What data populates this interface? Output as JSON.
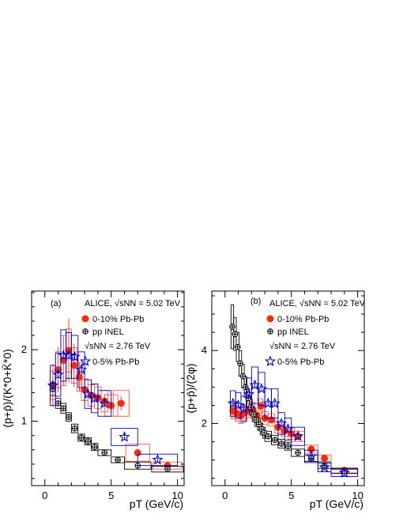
{
  "chart_data": [
    {
      "type": "scatter",
      "panel_label": "(a)",
      "annotation": "ALICE, √sNN = 5.02 TeV",
      "annotation_2": "√sNN = 2.76 TeV",
      "xlabel": "pT (GeV/c)",
      "ylabel": "(p+p̄)/(K*0+K̄*0)",
      "xlim": [
        -1.0,
        10.5
      ],
      "ylim": [
        0.1,
        2.82
      ],
      "xticks": [
        0,
        5,
        10
      ],
      "yticks": [
        1,
        2
      ],
      "legend_position": "top-right",
      "series": [
        {
          "name": "0-10% Pb-Pb",
          "marker": "filled-circle",
          "color": "#ff2a00",
          "box_color": "#ff5a3a",
          "x": [
            0.6,
            1.0,
            1.4,
            1.8,
            2.2,
            2.6,
            3.0,
            3.5,
            4.0,
            4.5,
            5.0,
            5.75,
            7.0,
            9.25
          ],
          "y": [
            1.5,
            1.72,
            1.85,
            1.99,
            1.78,
            1.62,
            1.44,
            1.36,
            1.33,
            1.28,
            1.22,
            1.25,
            0.56,
            0.38
          ],
          "stat_err": [
            0.3,
            0.32,
            0.35,
            0.45,
            0.3,
            0.2,
            0.15,
            0.1,
            0.1,
            0.1,
            0.1,
            0.1,
            0.05,
            0.04
          ],
          "box_half_width": [
            0.2,
            0.2,
            0.2,
            0.2,
            0.2,
            0.2,
            0.25,
            0.25,
            0.25,
            0.25,
            0.5,
            0.6,
            0.9,
            1.1
          ],
          "box_half_height": [
            0.2,
            0.25,
            0.35,
            0.3,
            0.25,
            0.2,
            0.15,
            0.15,
            0.15,
            0.15,
            0.15,
            0.18,
            0.12,
            0.05
          ]
        },
        {
          "name": "pp INEL",
          "marker": "open-cross",
          "color": "#000000",
          "box_color": "#000000",
          "x": [
            0.6,
            1.0,
            1.4,
            1.8,
            2.25,
            2.75,
            3.25,
            3.75,
            4.5,
            5.5,
            7.0,
            9.25
          ],
          "y": [
            1.45,
            1.25,
            1.18,
            1.06,
            0.9,
            0.77,
            0.72,
            0.64,
            0.56,
            0.46,
            0.38,
            0.33
          ],
          "stat_err": [
            0.03,
            0.03,
            0.03,
            0.03,
            0.02,
            0.02,
            0.02,
            0.02,
            0.02,
            0.02,
            0.02,
            0.02
          ],
          "box_half_width": [
            0.2,
            0.2,
            0.2,
            0.2,
            0.25,
            0.25,
            0.25,
            0.25,
            0.5,
            0.5,
            1.0,
            1.2
          ],
          "box_half_height": [
            0.09,
            0.07,
            0.07,
            0.06,
            0.06,
            0.05,
            0.05,
            0.05,
            0.04,
            0.04,
            0.05,
            0.04
          ]
        },
        {
          "name": "0-5% Pb-Pb",
          "marker": "open-star",
          "color": "#0000cc",
          "box_color": "#0000cc",
          "x": [
            0.6,
            1.0,
            1.4,
            1.8,
            2.25,
            2.75,
            3.25,
            3.75,
            4.5,
            6.0,
            8.5
          ],
          "y": [
            1.5,
            1.65,
            1.92,
            1.92,
            1.9,
            1.72,
            1.38,
            1.32,
            1.25,
            0.78,
            0.46
          ],
          "stat_err": [
            0.05,
            0.05,
            0.05,
            0.05,
            0.05,
            0.04,
            0.04,
            0.04,
            0.04,
            0.04,
            0.03
          ],
          "box_half_width": [
            0.2,
            0.2,
            0.2,
            0.2,
            0.25,
            0.25,
            0.25,
            0.25,
            0.5,
            1.0,
            1.5
          ],
          "box_half_height": [
            0.28,
            0.3,
            0.36,
            0.32,
            0.3,
            0.25,
            0.2,
            0.2,
            0.18,
            0.12,
            0.08
          ]
        }
      ]
    },
    {
      "type": "scatter",
      "panel_label": "(b)",
      "annotation": "ALICE, √sNN = 5.02 TeV",
      "annotation_2": "√sNN = 2.76 TeV",
      "xlabel": "pT (GeV/c)",
      "ylabel": "(p+p̄)/(2φ)",
      "xlim": [
        -1.0,
        10.5
      ],
      "ylim": [
        0.3,
        5.63
      ],
      "xticks": [
        0,
        5,
        10
      ],
      "yticks": [
        2,
        4
      ],
      "legend_position": "top-right",
      "series": [
        {
          "name": "0-10% Pb-Pb",
          "marker": "filled-circle",
          "color": "#ff2a00",
          "box_color": "#ff5a3a",
          "x": [
            0.6,
            0.9,
            1.2,
            1.5,
            1.8,
            2.1,
            2.4,
            2.7,
            3.0,
            3.5,
            4.0,
            4.5,
            5.0,
            5.5,
            6.5,
            7.5,
            9.0
          ],
          "y": [
            2.35,
            2.28,
            2.22,
            2.3,
            2.38,
            2.36,
            2.22,
            2.48,
            2.15,
            2.1,
            1.9,
            1.8,
            1.72,
            1.65,
            1.3,
            1.05,
            0.72
          ],
          "stat_err": [
            0.2,
            0.2,
            0.2,
            0.2,
            0.2,
            0.2,
            0.15,
            0.15,
            0.12,
            0.1,
            0.1,
            0.1,
            0.1,
            0.08,
            0.06,
            0.05,
            0.04
          ],
          "box_half_width": [
            0.15,
            0.15,
            0.15,
            0.15,
            0.15,
            0.15,
            0.15,
            0.15,
            0.25,
            0.25,
            0.25,
            0.25,
            0.25,
            0.5,
            0.5,
            0.5,
            1.0
          ],
          "box_half_height": [
            0.22,
            0.22,
            0.22,
            0.22,
            0.22,
            0.22,
            0.2,
            0.2,
            0.18,
            0.17,
            0.16,
            0.15,
            0.15,
            0.14,
            0.11,
            0.09,
            0.07
          ]
        },
        {
          "name": "pp INEL",
          "marker": "open-cross",
          "color": "#000000",
          "box_color": "#000000",
          "x": [
            0.55,
            0.75,
            0.95,
            1.15,
            1.35,
            1.55,
            1.75,
            1.95,
            2.15,
            2.35,
            2.55,
            2.75,
            2.95,
            3.25,
            3.75,
            4.25,
            4.75,
            5.5,
            6.5,
            7.5,
            9.0
          ],
          "y": [
            4.65,
            4.45,
            4.1,
            3.65,
            3.3,
            3.0,
            2.7,
            2.45,
            2.25,
            2.1,
            1.98,
            1.85,
            1.75,
            1.65,
            1.55,
            1.45,
            1.38,
            1.2,
            1.05,
            0.85,
            0.7
          ],
          "stat_err": [
            0.08,
            0.08,
            0.07,
            0.06,
            0.06,
            0.05,
            0.05,
            0.04,
            0.04,
            0.04,
            0.04,
            0.03,
            0.03,
            0.03,
            0.03,
            0.03,
            0.03,
            0.03,
            0.03,
            0.03,
            0.03
          ],
          "box_half_width": [
            0.1,
            0.1,
            0.1,
            0.1,
            0.1,
            0.1,
            0.1,
            0.1,
            0.1,
            0.1,
            0.1,
            0.1,
            0.1,
            0.25,
            0.25,
            0.25,
            0.25,
            0.5,
            0.5,
            0.5,
            1.0
          ],
          "box_half_height": [
            0.6,
            0.45,
            0.4,
            0.35,
            0.32,
            0.28,
            0.25,
            0.22,
            0.2,
            0.18,
            0.17,
            0.16,
            0.15,
            0.14,
            0.13,
            0.12,
            0.11,
            0.1,
            0.09,
            0.08,
            0.07
          ]
        },
        {
          "name": "0-5% Pb-Pb",
          "marker": "open-star",
          "color": "#0000cc",
          "box_color": "#0000cc",
          "x": [
            0.6,
            1.0,
            1.4,
            1.8,
            2.25,
            2.75,
            3.25,
            3.75,
            4.25,
            4.75,
            5.5,
            6.5,
            7.5,
            9.0
          ],
          "y": [
            2.55,
            2.5,
            2.4,
            2.8,
            3.05,
            2.95,
            2.55,
            2.55,
            2.0,
            1.85,
            1.65,
            1.1,
            0.8,
            0.65
          ],
          "stat_err": [
            0.06,
            0.06,
            0.06,
            0.07,
            0.07,
            0.07,
            0.06,
            0.06,
            0.05,
            0.05,
            0.05,
            0.04,
            0.03,
            0.03
          ],
          "box_half_width": [
            0.2,
            0.2,
            0.2,
            0.2,
            0.25,
            0.25,
            0.25,
            0.25,
            0.25,
            0.25,
            0.5,
            0.5,
            0.5,
            1.0
          ],
          "box_half_height": [
            0.35,
            0.35,
            0.35,
            0.45,
            0.5,
            0.45,
            0.4,
            0.4,
            0.3,
            0.3,
            0.25,
            0.17,
            0.12,
            0.1
          ]
        }
      ]
    }
  ]
}
